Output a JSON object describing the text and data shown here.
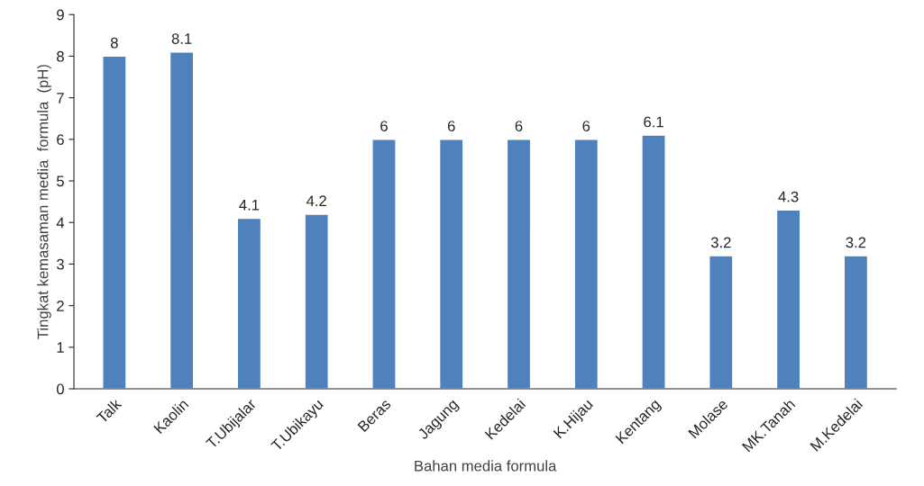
{
  "chart_data": {
    "type": "bar",
    "xlabel": "Bahan media formula",
    "ylabel": "Tingkat kemasaman media  formula  (pH)",
    "categories": [
      "Talk",
      "Kaolin",
      "T.Ubijalar",
      "T.Ubikayu",
      "Beras",
      "Jagung",
      "Kedelai",
      "K.Hijau",
      "Kentang",
      "Molase",
      "MK.Tanah",
      "M.Kedelai"
    ],
    "values": [
      8,
      8.1,
      4.1,
      4.2,
      6,
      6,
      6,
      6,
      6.1,
      3.2,
      4.3,
      3.2
    ],
    "color": "#4f81bd",
    "ylim": [
      0,
      9
    ],
    "yticks": [
      0,
      1,
      2,
      3,
      4,
      5,
      6,
      7,
      8,
      9
    ],
    "grid": false,
    "data_labels": true
  }
}
